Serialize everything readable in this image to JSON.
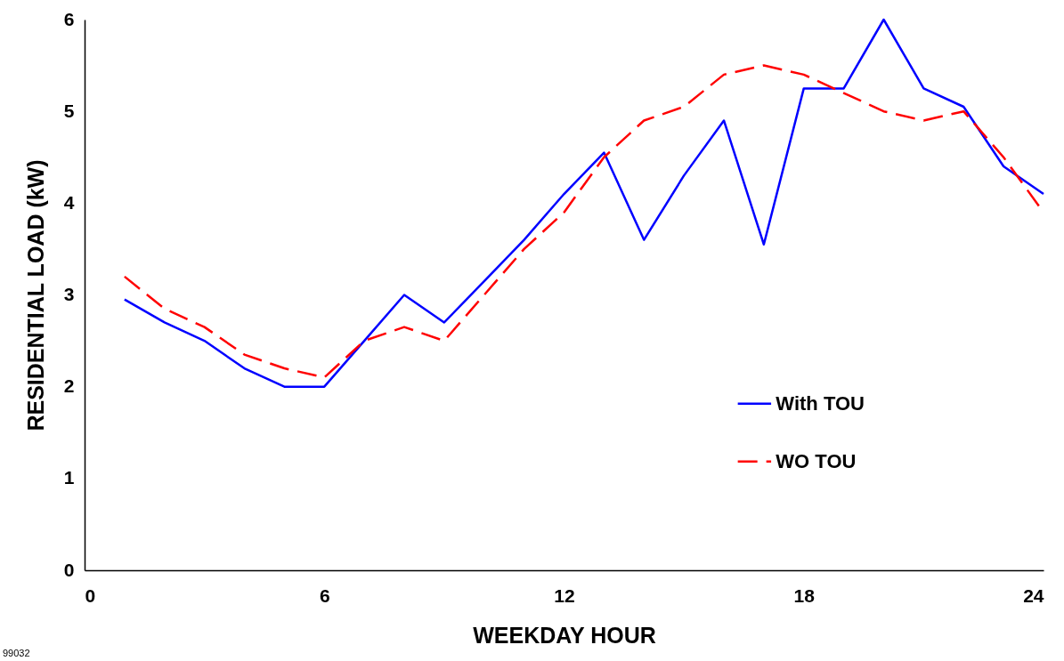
{
  "chart_data": {
    "type": "line",
    "xlabel": "WEEKDAY HOUR",
    "ylabel": "RESIDENTIAL LOAD (kW)",
    "x": [
      1,
      2,
      3,
      4,
      5,
      6,
      7,
      8,
      9,
      10,
      11,
      12,
      13,
      14,
      15,
      16,
      17,
      18,
      19,
      20,
      21,
      22,
      23,
      24
    ],
    "series": [
      {
        "name": "With TOU",
        "color": "#0000ff",
        "line_style": "solid",
        "values": [
          2.95,
          2.7,
          2.5,
          2.2,
          2.0,
          2.0,
          2.5,
          3.0,
          2.7,
          3.15,
          3.6,
          4.1,
          4.55,
          3.6,
          4.3,
          4.9,
          3.55,
          5.25,
          5.25,
          6.0,
          5.25,
          5.05,
          4.4,
          4.1
        ]
      },
      {
        "name": "WO TOU",
        "color": "#ff0000",
        "line_style": "dashed",
        "values": [
          3.2,
          2.85,
          2.65,
          2.35,
          2.2,
          2.1,
          2.5,
          2.65,
          2.5,
          3.0,
          3.5,
          3.9,
          4.5,
          4.9,
          5.05,
          5.4,
          5.5,
          5.4,
          5.2,
          5.0,
          4.9,
          5.0,
          4.5,
          3.9
        ]
      }
    ],
    "xlim": [
      0,
      24
    ],
    "xticks": [
      0,
      6,
      12,
      18,
      24
    ],
    "ylim": [
      0,
      6
    ],
    "yticks": [
      0,
      1,
      2,
      3,
      4,
      5,
      6
    ],
    "grid": false,
    "legend": "right",
    "marker": "none",
    "annotations": [
      "99032"
    ]
  }
}
